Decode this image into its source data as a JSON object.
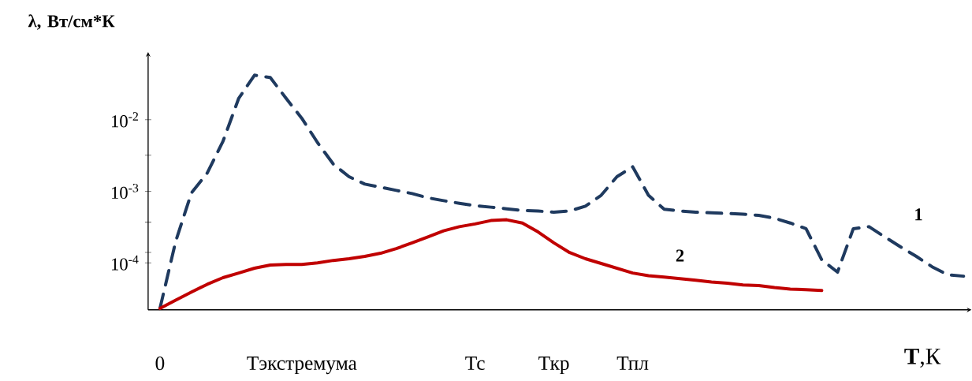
{
  "chart_data": {
    "type": "line",
    "log": "y",
    "legend": false,
    "grid": false,
    "marker": "none",
    "xlabel": "**T**,К",
    "ylabel": "λ, Вт/см*К",
    "categories": [
      "0",
      null,
      null,
      null,
      null,
      null,
      null,
      null,
      null,
      "Тэкстремума",
      null,
      null,
      null,
      null,
      null,
      null,
      null,
      null,
      null,
      null,
      "Тс",
      null,
      null,
      null,
      null,
      "Ткр",
      null,
      null,
      null,
      null,
      "Тпл",
      null,
      null,
      null,
      null,
      null,
      null,
      null,
      null,
      null,
      null,
      null,
      null,
      null,
      null,
      null,
      null,
      null,
      null,
      null,
      null,
      null
    ],
    "ylim": [
      2.2e-05,
      0.08
    ],
    "yticks": [
      {
        "value": 0.0001,
        "label": "10$^{-4}$"
      },
      {
        "value": 0.00014,
        "label": null
      },
      {
        "value": 0.00037,
        "label": null
      },
      {
        "value": 0.001,
        "label": "10$^{-3}$"
      },
      {
        "value": 0.0032,
        "label": null
      },
      {
        "value": 0.01,
        "label": "10$^{-2}$"
      }
    ],
    "series": [
      {
        "name": "1",
        "color": "#1f3a5f",
        "line_style": "dashed",
        "values": [
          2.3e-05,
          0.0002,
          0.00095,
          0.0018,
          0.005,
          0.02,
          0.042,
          0.039,
          0.02,
          0.0105,
          0.0048,
          0.0024,
          0.0016,
          0.00126,
          0.00114,
          0.00103,
          0.00093,
          0.00081,
          0.00074,
          0.00068,
          0.00063,
          0.0006,
          0.00057,
          0.00054,
          0.00053,
          0.00051,
          0.00053,
          0.00062,
          0.00088,
          0.0016,
          0.0022,
          0.00088,
          0.00056,
          0.00053,
          0.00051,
          0.0005,
          0.00049,
          0.00048,
          0.00046,
          0.00042,
          0.00036,
          0.0003,
          0.00011,
          7.4e-05,
          0.0003,
          0.00032,
          0.00023,
          0.000167,
          0.000123,
          8.8e-05,
          6.8e-05,
          6.5e-05
        ]
      },
      {
        "name": "2",
        "color": "#c00000",
        "line_style": "solid",
        "values": [
          2.3e-05,
          3e-05,
          3.9e-05,
          5e-05,
          6.2e-05,
          7.2e-05,
          8.4e-05,
          9.3e-05,
          9.5e-05,
          9.5e-05,
          0.0001,
          0.000108,
          0.000114,
          0.000123,
          0.000136,
          0.000158,
          0.00019,
          0.00023,
          0.00028,
          0.00032,
          0.00035,
          0.00039,
          0.0004,
          0.00036,
          0.00027,
          0.00019,
          0.000139,
          0.000114,
          9.8e-05,
          8.4e-05,
          7.2e-05,
          6.6e-05,
          6.3e-05,
          6e-05,
          5.7e-05,
          5.4e-05,
          5.2e-05,
          4.9e-05,
          4.8e-05,
          4.5e-05,
          4.3e-05,
          4.2e-05,
          4.1e-05,
          null,
          null,
          null,
          null,
          null,
          null,
          null,
          null,
          null
        ]
      }
    ]
  }
}
